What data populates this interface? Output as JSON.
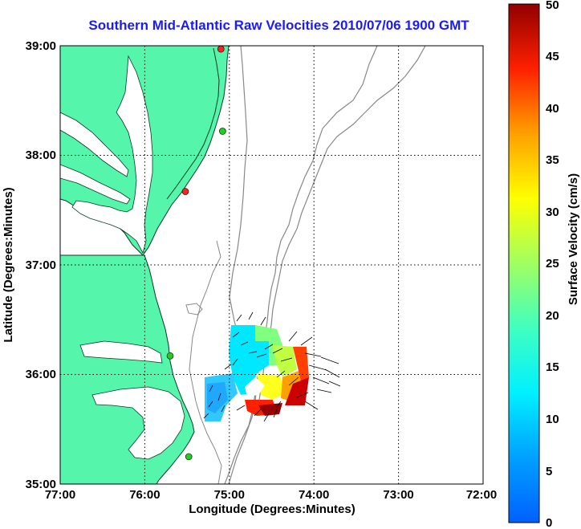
{
  "title": "Southern Mid-Atlantic Raw Velocities 2010/07/06 1900 GMT",
  "x_axis": {
    "label": "Longitude (Degrees:Minutes)",
    "ticks": [
      "77:00",
      "76:00",
      "75:00",
      "74:00",
      "73:00",
      "72:00"
    ]
  },
  "y_axis": {
    "label": "Latitude (Degrees:Minutes)",
    "ticks": [
      "39:00",
      "38:00",
      "37:00",
      "36:00",
      "35:00"
    ]
  },
  "colorbar": {
    "label": "Surface Velocity (cm/s)",
    "ticks": [
      "0",
      "5",
      "10",
      "15",
      "20",
      "25",
      "30",
      "35",
      "40",
      "45",
      "50"
    ],
    "min": 0,
    "max": 50
  },
  "map_extent": {
    "lon_west": -77.0,
    "lon_east": -72.0,
    "lat_south": 35.0,
    "lat_north": 39.0
  },
  "colors": {
    "land": "#55f5ab",
    "title": "#1a1aff",
    "bathymetry": "#888888"
  },
  "stations": [
    {
      "lon": -75.1,
      "lat": 38.97,
      "color": "#ff2020"
    },
    {
      "lon": -75.08,
      "lat": 38.22,
      "color": "#22cc22"
    },
    {
      "lon": -75.52,
      "lat": 37.67,
      "color": "#ff2020"
    },
    {
      "lon": -75.7,
      "lat": 36.17,
      "color": "#22cc22"
    },
    {
      "lon": -75.48,
      "lat": 35.25,
      "color": "#22cc22"
    }
  ]
}
